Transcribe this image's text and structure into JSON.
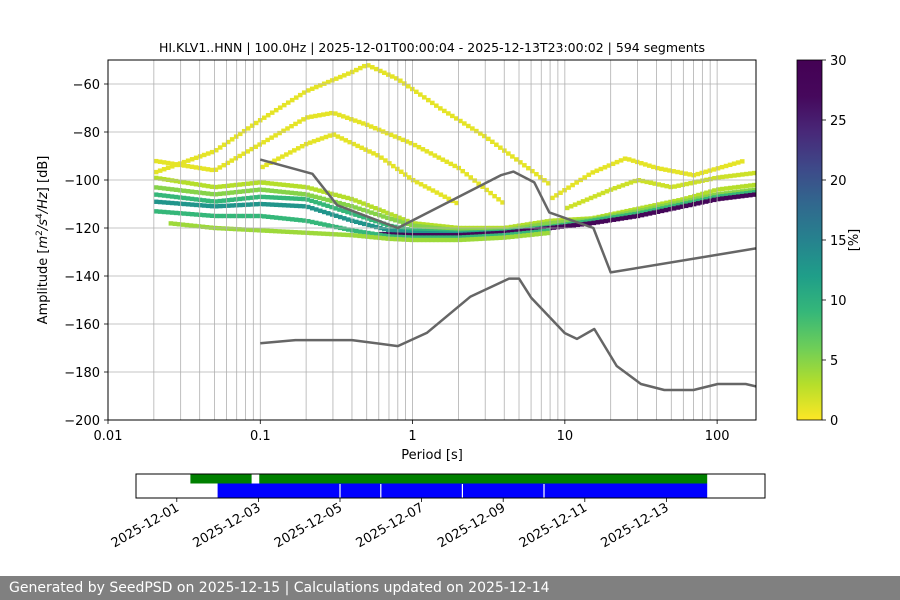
{
  "chart_data": [
    {
      "type": "heatmap",
      "title": "HI.KLV1..HNN | 100.0Hz | 2025-12-01T00:00:04 - 2025-12-13T23:00:02 | 594 segments",
      "xlabel": "Period [s]",
      "ylabel_parts": [
        "Amplitude [",
        "m",
        "2",
        "/",
        "s",
        "4",
        "/",
        "Hz",
        "] [dB]"
      ],
      "x_scale": "log",
      "xlim": [
        0.01,
        180
      ],
      "ylim": [
        -200,
        -50
      ],
      "x_ticks": [
        {
          "v": 0.01,
          "label": "0.01"
        },
        {
          "v": 0.1,
          "label": "0.1"
        },
        {
          "v": 1,
          "label": "1"
        },
        {
          "v": 10,
          "label": "10"
        },
        {
          "v": 100,
          "label": "100"
        }
      ],
      "y_ticks": [
        {
          "v": -60,
          "label": "−60"
        },
        {
          "v": -80,
          "label": "−80"
        },
        {
          "v": -100,
          "label": "−100"
        },
        {
          "v": -120,
          "label": "−120"
        },
        {
          "v": -140,
          "label": "−140"
        },
        {
          "v": -160,
          "label": "−160"
        },
        {
          "v": -180,
          "label": "−180"
        },
        {
          "v": -200,
          "label": "−200"
        }
      ],
      "grid": true,
      "colormap": "viridis_r",
      "colorbar": {
        "label": "[%]",
        "range": [
          0,
          30
        ],
        "ticks": [
          {
            "v": 0,
            "label": "0"
          },
          {
            "v": 5,
            "label": "5"
          },
          {
            "v": 10,
            "label": "10"
          },
          {
            "v": 15,
            "label": "15"
          },
          {
            "v": 20,
            "label": "20"
          },
          {
            "v": 25,
            "label": "25"
          },
          {
            "v": 30,
            "label": "30"
          }
        ]
      },
      "density_bands": [
        {
          "name": "upper_harmonic_a",
          "pct": 1,
          "pts": [
            [
              0.02,
              -97
            ],
            [
              0.05,
              -88
            ],
            [
              0.1,
              -75
            ],
            [
              0.2,
              -63
            ],
            [
              0.4,
              -55
            ],
            [
              0.5,
              -52
            ],
            [
              0.8,
              -58
            ],
            [
              1.5,
              -70
            ],
            [
              3,
              -82
            ],
            [
              6,
              -96
            ],
            [
              8,
              -102
            ]
          ]
        },
        {
          "name": "upper_harmonic_b",
          "pct": 1,
          "pts": [
            [
              0.02,
              -92
            ],
            [
              0.05,
              -96
            ],
            [
              0.1,
              -85
            ],
            [
              0.2,
              -74
            ],
            [
              0.3,
              -72
            ],
            [
              0.5,
              -77
            ],
            [
              1,
              -85
            ],
            [
              2,
              -95
            ],
            [
              4,
              -110
            ]
          ]
        },
        {
          "name": "upper_harmonic_c",
          "pct": 1,
          "pts": [
            [
              0.1,
              -95
            ],
            [
              0.2,
              -85
            ],
            [
              0.3,
              -81
            ],
            [
              0.6,
              -90
            ],
            [
              1,
              -100
            ],
            [
              2,
              -110
            ]
          ]
        },
        {
          "name": "right_hump_a",
          "pct": 1,
          "pts": [
            [
              8,
              -108
            ],
            [
              15,
              -97
            ],
            [
              25,
              -91
            ],
            [
              40,
              -95
            ],
            [
              70,
              -98
            ],
            [
              150,
              -92
            ]
          ]
        },
        {
          "name": "right_hump_b",
          "pct": 2,
          "pts": [
            [
              10,
              -112
            ],
            [
              20,
              -104
            ],
            [
              30,
              -100
            ],
            [
              50,
              -103
            ],
            [
              100,
              -99
            ],
            [
              180,
              -97
            ]
          ]
        }
      ],
      "noise_floor_percentiles": [
        {
          "pct": 3,
          "pts": [
            [
              0.02,
              -99
            ],
            [
              0.05,
              -103
            ],
            [
              0.1,
              -101
            ],
            [
              0.2,
              -103
            ],
            [
              0.4,
              -108
            ],
            [
              0.7,
              -114
            ],
            [
              1,
              -118
            ],
            [
              2,
              -120
            ],
            [
              4,
              -120
            ],
            [
              8,
              -117
            ],
            [
              15,
              -116
            ],
            [
              30,
              -112
            ],
            [
              60,
              -108
            ],
            [
              100,
              -104
            ],
            [
              180,
              -102
            ]
          ]
        },
        {
          "pct": 5,
          "pts": [
            [
              0.02,
              -103
            ],
            [
              0.05,
              -106
            ],
            [
              0.1,
              -104
            ],
            [
              0.2,
              -106
            ],
            [
              0.4,
              -111
            ],
            [
              0.7,
              -116
            ],
            [
              1,
              -119
            ],
            [
              2,
              -121
            ],
            [
              4,
              -121
            ],
            [
              8,
              -118
            ],
            [
              15,
              -116.5
            ],
            [
              30,
              -113
            ],
            [
              60,
              -109
            ],
            [
              100,
              -106
            ],
            [
              180,
              -104
            ]
          ]
        },
        {
          "pct": 9,
          "pts": [
            [
              0.02,
              -106
            ],
            [
              0.05,
              -109
            ],
            [
              0.1,
              -107
            ],
            [
              0.2,
              -108
            ],
            [
              0.4,
              -114
            ],
            [
              0.7,
              -119
            ],
            [
              1,
              -121
            ],
            [
              2,
              -122
            ],
            [
              4,
              -121.5
            ],
            [
              8,
              -119.5
            ],
            [
              15,
              -117
            ],
            [
              30,
              -114
            ],
            [
              60,
              -110
            ],
            [
              100,
              -107
            ],
            [
              180,
              -105
            ]
          ]
        },
        {
          "pct": 13,
          "pts": [
            [
              0.02,
              -109
            ],
            [
              0.05,
              -111
            ],
            [
              0.1,
              -110
            ],
            [
              0.2,
              -111
            ],
            [
              0.4,
              -117
            ],
            [
              0.7,
              -121
            ],
            [
              1,
              -122
            ],
            [
              2,
              -122.5
            ],
            [
              4,
              -122
            ],
            [
              8,
              -120
            ]
          ]
        },
        {
          "pct": 28,
          "pts": [
            [
              0.6,
              -122.5
            ],
            [
              1,
              -123
            ],
            [
              2,
              -123
            ],
            [
              4,
              -122
            ],
            [
              8,
              -120
            ],
            [
              15,
              -118
            ],
            [
              30,
              -115
            ],
            [
              60,
              -111
            ],
            [
              100,
              -108
            ],
            [
              180,
              -106
            ]
          ]
        },
        {
          "pct": 9,
          "pts": [
            [
              0.02,
              -113
            ],
            [
              0.05,
              -115
            ],
            [
              0.1,
              -115
            ],
            [
              0.2,
              -117
            ],
            [
              0.4,
              -121
            ],
            [
              0.7,
              -123.5
            ],
            [
              1,
              -124
            ],
            [
              2,
              -124
            ],
            [
              4,
              -123
            ],
            [
              8,
              -121
            ]
          ]
        },
        {
          "pct": 4,
          "pts": [
            [
              0.025,
              -118
            ],
            [
              0.05,
              -120
            ],
            [
              0.1,
              -121
            ],
            [
              0.2,
              -122
            ],
            [
              0.4,
              -123
            ],
            [
              0.7,
              -124.5
            ],
            [
              1,
              -125
            ],
            [
              2,
              -125
            ],
            [
              4,
              -124
            ],
            [
              8,
              -122
            ]
          ]
        }
      ],
      "reference_curves": [
        {
          "name": "NHNM",
          "pts": [
            [
              0.1,
              -91.5
            ],
            [
              0.22,
              -97.4
            ],
            [
              0.32,
              -110.5
            ],
            [
              0.8,
              -120
            ],
            [
              3.8,
              -98
            ],
            [
              4.6,
              -96.5
            ],
            [
              6.3,
              -101
            ],
            [
              7.9,
              -113.5
            ],
            [
              15.4,
              -120
            ],
            [
              20,
              -138.5
            ],
            [
              180,
              -128.5
            ]
          ]
        },
        {
          "name": "NLNM",
          "pts": [
            [
              0.1,
              -168
            ],
            [
              0.17,
              -166.7
            ],
            [
              0.4,
              -166.7
            ],
            [
              0.8,
              -169.2
            ],
            [
              1.24,
              -163.7
            ],
            [
              2.4,
              -148.6
            ],
            [
              4.3,
              -141.1
            ],
            [
              5,
              -141.1
            ],
            [
              6,
              -149
            ],
            [
              10,
              -163.8
            ],
            [
              12,
              -166.2
            ],
            [
              15.6,
              -162.1
            ],
            [
              21.9,
              -177.5
            ],
            [
              31.6,
              -185
            ],
            [
              45,
              -187.5
            ],
            [
              70,
              -187.5
            ],
            [
              101,
              -185
            ],
            [
              154,
              -185
            ],
            [
              180,
              -186
            ]
          ]
        }
      ]
    },
    {
      "type": "timeline",
      "tracks": [
        {
          "name": "data availability",
          "color": "#008000",
          "segments": [
            [
              "2025-12-01T08:00:00",
              "2025-12-02T20:00:00"
            ],
            [
              "2025-12-03T00:30:00",
              "2025-12-14T00:00:00"
            ]
          ]
        },
        {
          "name": "psd segments",
          "color": "#0000ff",
          "segments": [
            [
              "2025-12-02T00:00:00",
              "2025-12-03T06:30:00"
            ],
            [
              "2025-12-02T23:00:00",
              "2025-12-14T00:00:00"
            ]
          ]
        }
      ],
      "gaps_psd": [
        "2025-12-05T00:00:00",
        "2025-12-06T00:00:00",
        "2025-12-08T00:00:00",
        "2025-12-10T00:00:00"
      ],
      "x_range": [
        "2025-11-30T00:00:00",
        "2025-12-15T10:00:00"
      ],
      "tick_labels": [
        "2025-12-01",
        "2025-12-03",
        "2025-12-05",
        "2025-12-07",
        "2025-12-09",
        "2025-12-11",
        "2025-12-13"
      ]
    }
  ],
  "footer": "Generated by SeedPSD on 2025-12-15 | Calculations updated on 2025-12-14"
}
